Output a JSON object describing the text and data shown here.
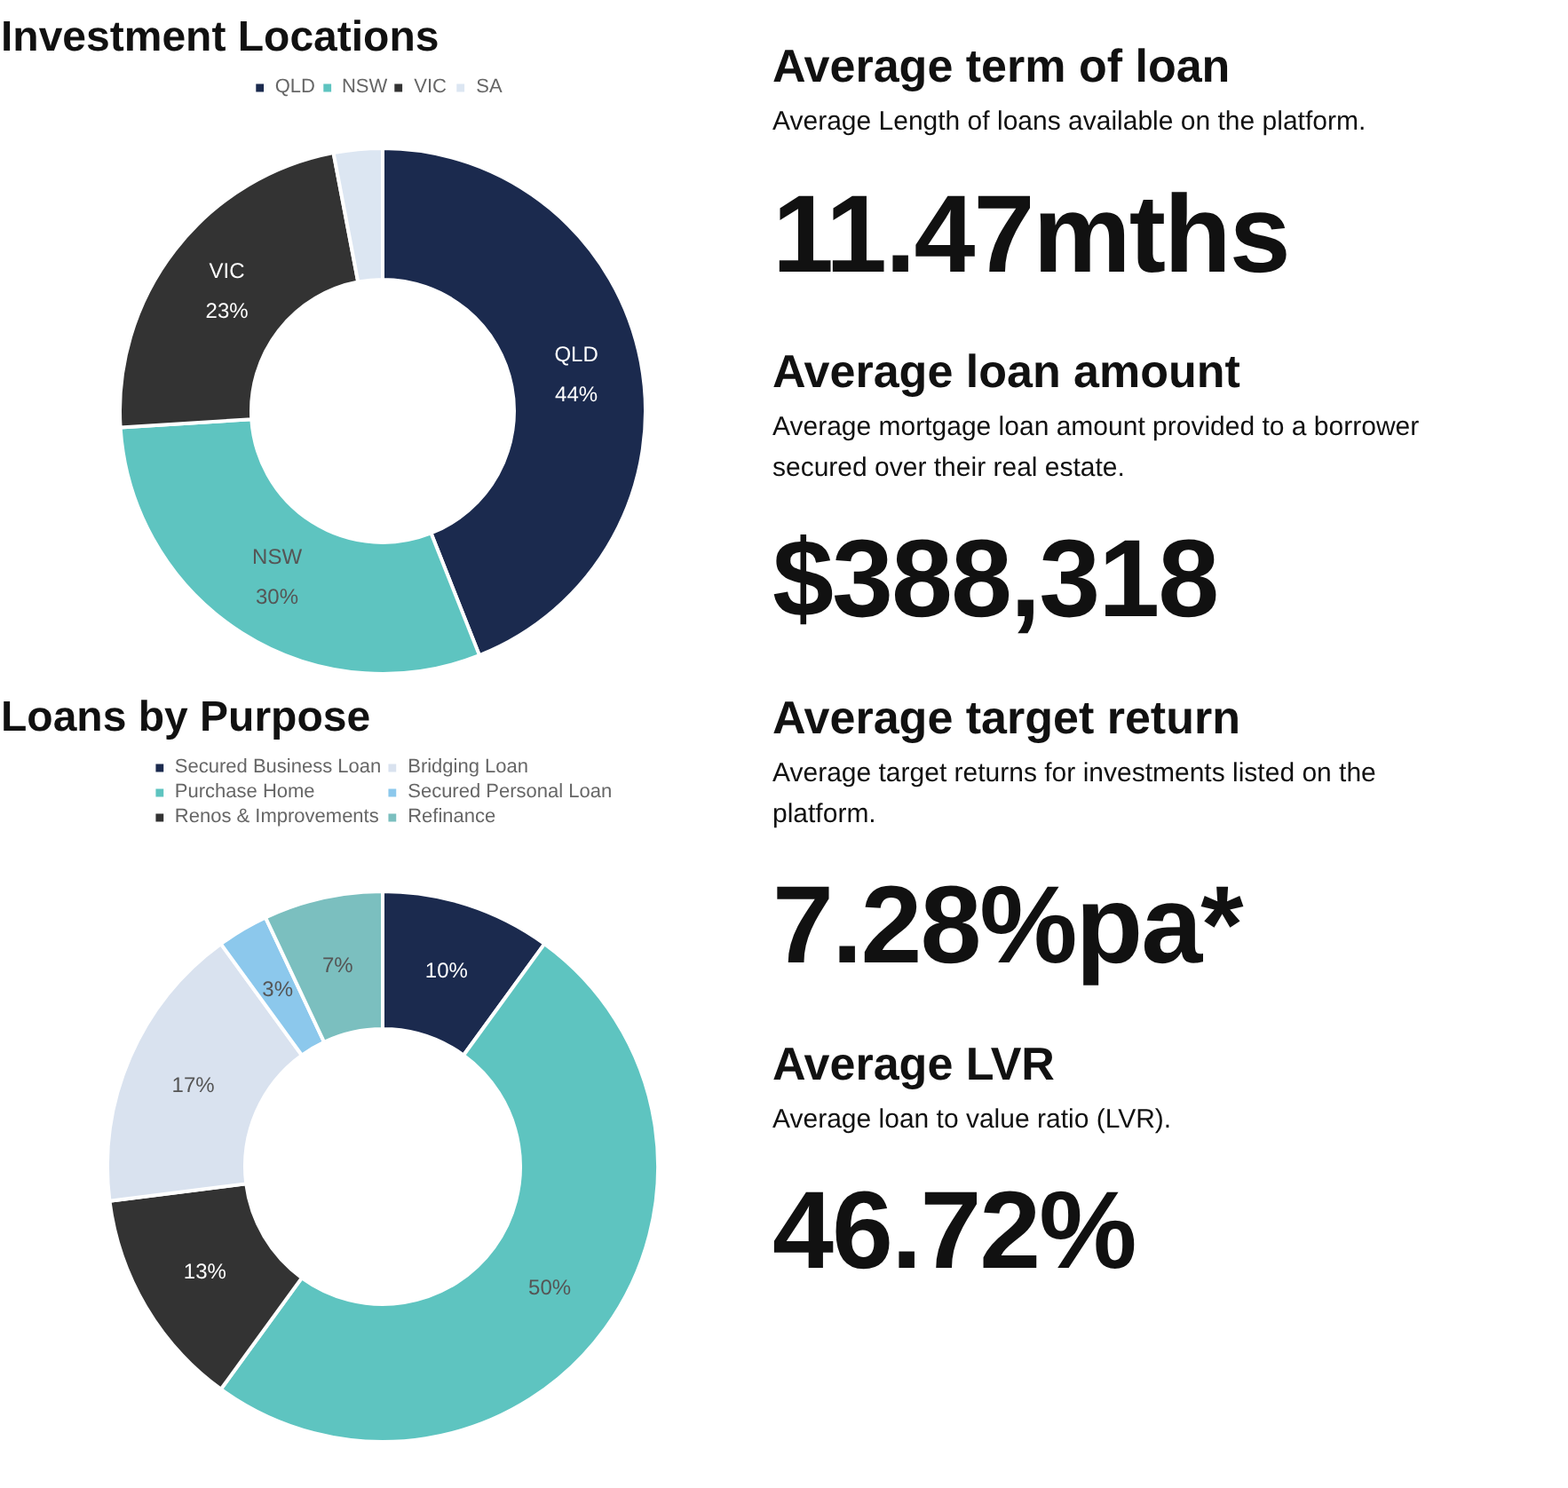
{
  "chart_data": [
    {
      "type": "donut",
      "title": "Investment Locations",
      "categories": [
        "QLD",
        "NSW",
        "VIC",
        "SA"
      ],
      "values": [
        44,
        30,
        23,
        3
      ],
      "colors": [
        "#1b2a4e",
        "#5ec4c0",
        "#333333",
        "#dce6f2"
      ],
      "value_labels": [
        "QLD\n44%",
        "NSW\n30%",
        "VIC\n23%",
        null
      ],
      "legend": "top"
    },
    {
      "type": "donut",
      "title": "Loans by Purpose",
      "categories": [
        "Secured Business Loan",
        "Purchase Home",
        "Renos & Improvements",
        "Bridging Loan",
        "Secured Personal Loan",
        "Refinance"
      ],
      "values": [
        10,
        50,
        13,
        17,
        3,
        7
      ],
      "colors": [
        "#1b2a4e",
        "#5ec4c0",
        "#333333",
        "#d9e2ef",
        "#8cc8ec",
        "#7bbfbf"
      ],
      "value_labels": [
        "10%",
        "50%",
        "13%",
        "17%",
        "3%",
        "7%"
      ],
      "legend": "top"
    },
    {
      "type": "other",
      "annotations": [
        "Average term of loan",
        "Average Length of loans available on the platform.",
        "11.47mths",
        "Average loan amount",
        "Average mortgage loan amount provided to a borrower secured over their real estate.",
        "$388,318",
        "Average target return",
        "Average target returns for investments listed on the platform.",
        "7.28%pa*",
        "Average LVR",
        "Average loan to value ratio (LVR).",
        "46.72%"
      ]
    }
  ]
}
